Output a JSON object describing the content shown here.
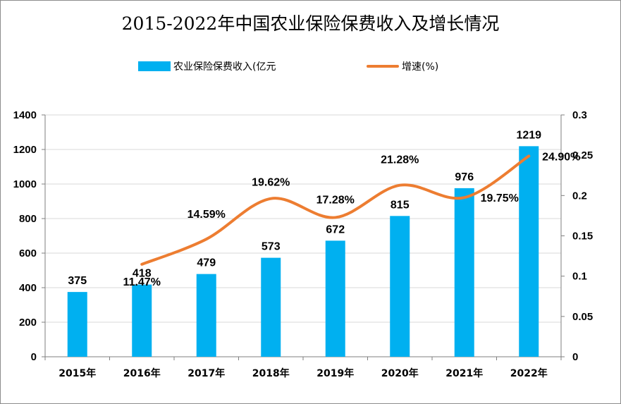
{
  "chart_data": {
    "type": "bar",
    "title": "2015-2022年中国农业保险保费收入及增长情况",
    "categories": [
      "2015年",
      "2016年",
      "2017年",
      "2018年",
      "2019年",
      "2020年",
      "2021年",
      "2022年"
    ],
    "series": [
      {
        "name": "农业保险保费收入(亿元",
        "type": "bar",
        "axis": "left",
        "color": "#00b0f0",
        "values": [
          375,
          418,
          479,
          573,
          672,
          815,
          976,
          1219
        ],
        "labels": [
          "375",
          "418",
          "479",
          "573",
          "672",
          "815",
          "976",
          "1219"
        ]
      },
      {
        "name": "增速(%)",
        "type": "line",
        "axis": "right",
        "color": "#ed7d31",
        "values": [
          null,
          0.1147,
          0.1459,
          0.1962,
          0.1728,
          0.2128,
          0.1975,
          0.249
        ],
        "labels": [
          "",
          "11.47%",
          "14.59%",
          "19.62%",
          "17.28%",
          "21.28%",
          "19.75%",
          "24.90%"
        ]
      }
    ],
    "y_left": {
      "range": [
        0,
        1400
      ],
      "ticks": [
        "0",
        "200",
        "400",
        "600",
        "800",
        "1000",
        "1200",
        "1400"
      ]
    },
    "y_right": {
      "range": [
        0,
        0.3
      ],
      "ticks": [
        "0",
        "0.05",
        "0.1",
        "0.15",
        "0.2",
        "0.25",
        "0.3"
      ]
    },
    "grid": true,
    "legend_position": "top"
  }
}
